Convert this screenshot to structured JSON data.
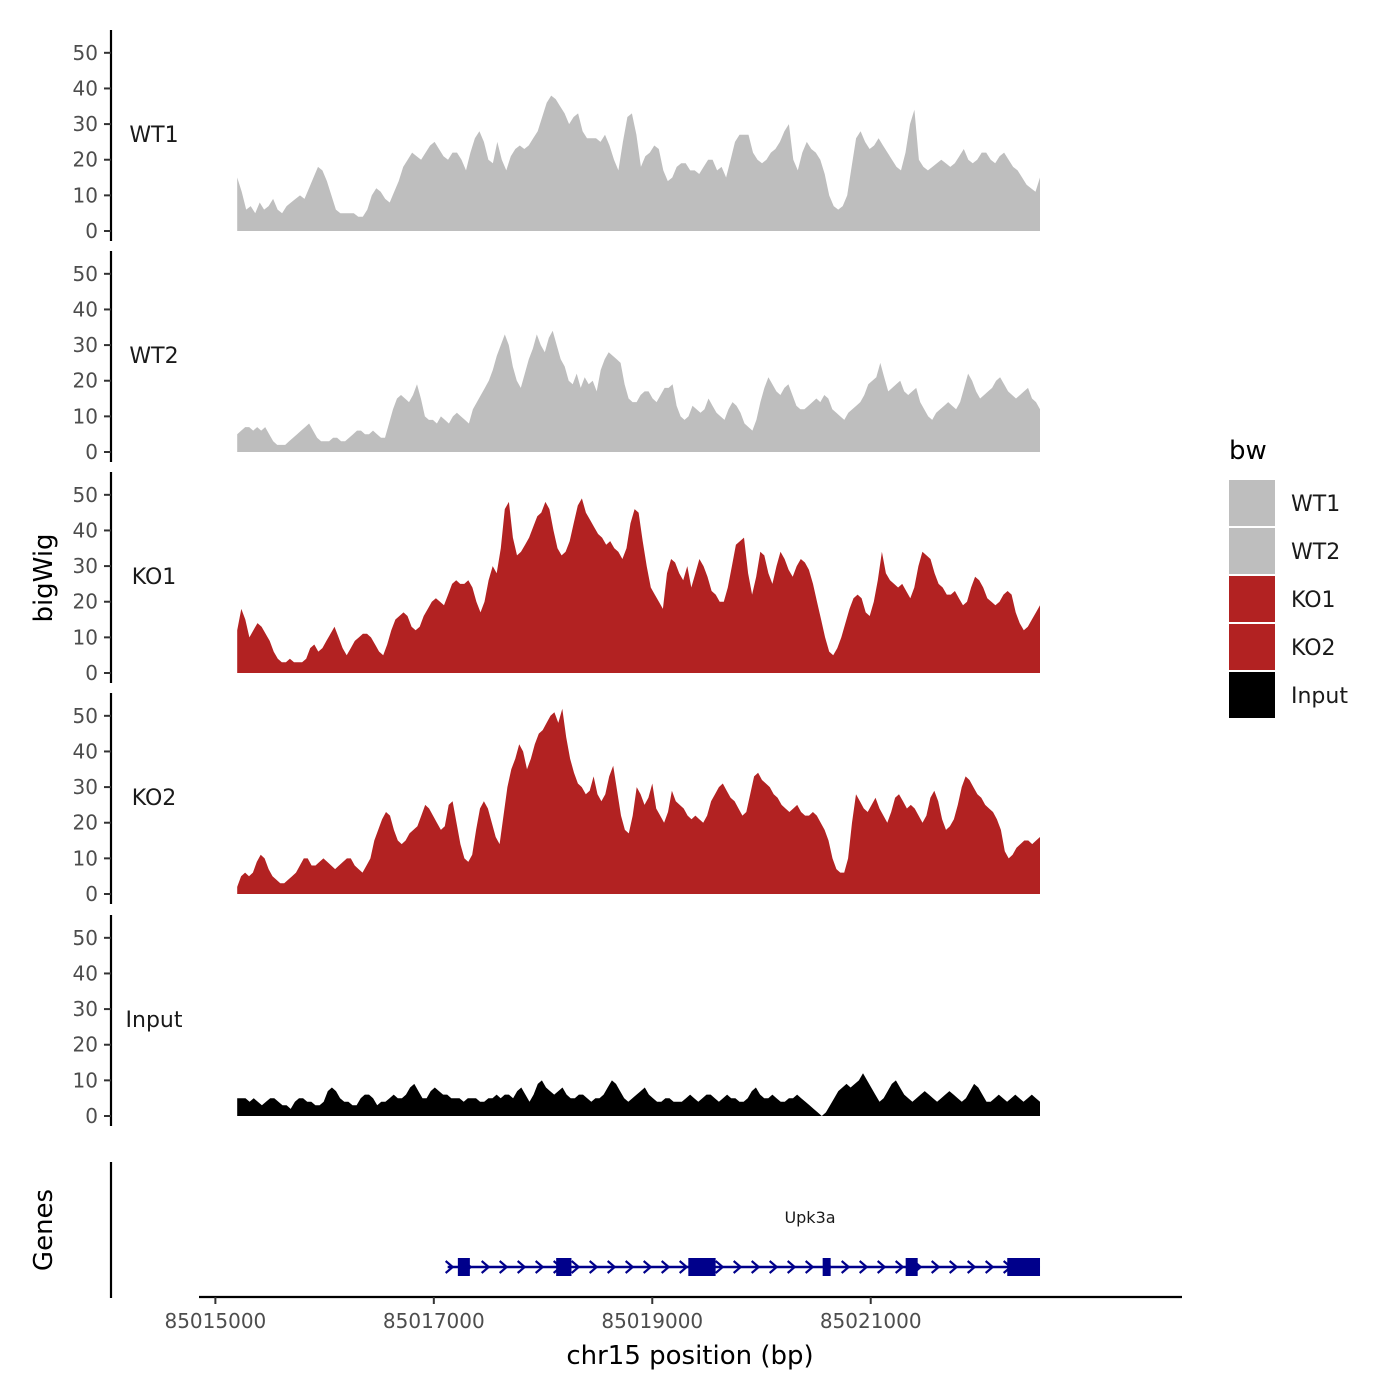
{
  "chart_data": {
    "type": "area",
    "title": "",
    "ylabel": "bigWig",
    "xlabel": "chr15 position (bp)",
    "gene_track_label": "Genes",
    "ylim": [
      0,
      55
    ],
    "yticks": [
      "0",
      "10",
      "20",
      "30",
      "40",
      "50"
    ],
    "xlim": [
      85014850,
      85023850
    ],
    "xticks": [
      {
        "value": 85015000,
        "label": "85015000"
      },
      {
        "value": 85017000,
        "label": "85017000"
      },
      {
        "value": 85019000,
        "label": "85019000"
      },
      {
        "value": 85021000,
        "label": "85021000"
      }
    ],
    "data_range": [
      85015200,
      85022550
    ],
    "legend": {
      "title": "bw",
      "position": "right",
      "entries": [
        {
          "label": "WT1",
          "color": "#BEBEBE"
        },
        {
          "label": "WT2",
          "color": "#BEBEBE"
        },
        {
          "label": "KO1",
          "color": "#B22222"
        },
        {
          "label": "KO2",
          "color": "#B22222"
        },
        {
          "label": "Input",
          "color": "#000000"
        }
      ]
    },
    "series": [
      {
        "name": "WT1",
        "color": "#BEBEBE",
        "values": [
          15,
          11,
          6,
          7,
          5,
          8,
          6,
          7,
          9,
          6,
          5,
          7,
          8,
          9,
          10,
          9,
          12,
          15,
          18,
          17,
          14,
          10,
          6,
          5,
          5,
          5,
          5,
          4,
          4,
          6,
          10,
          12,
          11,
          9,
          8,
          11,
          14,
          18,
          20,
          22,
          21,
          20,
          22,
          24,
          25,
          23,
          21,
          20,
          22,
          22,
          20,
          17,
          22,
          26,
          28,
          25,
          20,
          19,
          25,
          20,
          17,
          21,
          23,
          24,
          23,
          24,
          26,
          28,
          32,
          36,
          38,
          37,
          35,
          33,
          30,
          32,
          33,
          28,
          26,
          26,
          26,
          25,
          27,
          24,
          20,
          17,
          25,
          32,
          33,
          27,
          18,
          21,
          22,
          24,
          23,
          17,
          14,
          15,
          18,
          19,
          19,
          17,
          17,
          16,
          18,
          20,
          20,
          17,
          18,
          15,
          20,
          25,
          27,
          27,
          27,
          22,
          20,
          19,
          20,
          22,
          23,
          25,
          28,
          30,
          20,
          17,
          22,
          25,
          23,
          22,
          20,
          16,
          10,
          7,
          6,
          7,
          10,
          18,
          26,
          28,
          25,
          23,
          24,
          26,
          24,
          22,
          20,
          18,
          17,
          22,
          30,
          34,
          20,
          18,
          17,
          18,
          19,
          20,
          19,
          18,
          19,
          21,
          23,
          20,
          19,
          20,
          22,
          22,
          20,
          19,
          21,
          22,
          20,
          18,
          17,
          15,
          13,
          12,
          11,
          15
        ]
      },
      {
        "name": "WT2",
        "color": "#BEBEBE",
        "values": [
          5,
          6,
          7,
          7,
          6,
          7,
          6,
          7,
          5,
          3,
          2,
          2,
          2,
          3,
          4,
          5,
          6,
          7,
          8,
          6,
          4,
          3,
          3,
          3,
          4,
          4,
          3,
          3,
          4,
          5,
          6,
          6,
          5,
          5,
          6,
          5,
          4,
          4,
          8,
          12,
          15,
          16,
          15,
          14,
          16,
          19,
          15,
          10,
          9,
          9,
          8,
          10,
          9,
          8,
          10,
          11,
          10,
          9,
          8,
          12,
          14,
          16,
          18,
          20,
          23,
          27,
          30,
          33,
          30,
          24,
          20,
          18,
          22,
          26,
          29,
          33,
          30,
          28,
          32,
          34,
          30,
          26,
          24,
          20,
          19,
          22,
          18,
          21,
          19,
          20,
          17,
          23,
          26,
          28,
          27,
          26,
          25,
          19,
          15,
          14,
          14,
          16,
          17,
          17,
          15,
          14,
          16,
          18,
          18,
          19,
          13,
          10,
          9,
          10,
          13,
          12,
          11,
          12,
          15,
          13,
          11,
          10,
          9,
          12,
          14,
          13,
          11,
          8,
          7,
          6,
          9,
          14,
          18,
          21,
          19,
          17,
          16,
          18,
          19,
          16,
          13,
          12,
          12,
          13,
          14,
          15,
          14,
          16,
          15,
          12,
          11,
          10,
          9,
          11,
          12,
          13,
          14,
          16,
          19,
          20,
          21,
          25,
          21,
          17,
          18,
          19,
          20,
          17,
          16,
          17,
          18,
          14,
          12,
          10,
          9,
          11,
          12,
          13,
          14,
          13,
          12,
          14,
          18,
          22,
          20,
          17,
          15,
          16,
          17,
          18,
          20,
          21,
          19,
          17,
          16,
          15,
          16,
          17,
          18,
          15,
          14,
          12
        ]
      },
      {
        "name": "KO1",
        "color": "#B22222",
        "values": [
          12,
          18,
          15,
          10,
          12,
          14,
          13,
          11,
          9,
          6,
          4,
          3,
          3,
          4,
          3,
          3,
          3,
          4,
          7,
          8,
          6,
          7,
          9,
          11,
          13,
          10,
          7,
          5,
          7,
          9,
          10,
          11,
          11,
          10,
          8,
          6,
          5,
          8,
          12,
          15,
          16,
          17,
          16,
          13,
          12,
          13,
          16,
          18,
          20,
          21,
          20,
          19,
          22,
          25,
          26,
          25,
          25,
          26,
          24,
          20,
          17,
          20,
          26,
          30,
          28,
          35,
          46,
          48,
          38,
          33,
          34,
          36,
          38,
          41,
          44,
          45,
          48,
          46,
          40,
          35,
          33,
          34,
          37,
          42,
          47,
          49,
          45,
          43,
          41,
          39,
          38,
          36,
          37,
          35,
          34,
          32,
          35,
          42,
          46,
          45,
          37,
          30,
          24,
          22,
          20,
          18,
          28,
          32,
          31,
          28,
          26,
          30,
          24,
          28,
          32,
          30,
          27,
          23,
          22,
          20,
          20,
          24,
          30,
          36,
          37,
          38,
          28,
          22,
          27,
          34,
          33,
          28,
          25,
          30,
          34,
          32,
          29,
          27,
          30,
          32,
          31,
          29,
          25,
          20,
          15,
          10,
          6,
          5,
          7,
          10,
          14,
          18,
          21,
          22,
          21,
          17,
          16,
          20,
          26,
          34,
          28,
          26,
          25,
          24,
          25,
          23,
          21,
          24,
          30,
          34,
          33,
          32,
          28,
          25,
          24,
          22,
          22,
          23,
          21,
          19,
          20,
          24,
          27,
          26,
          24,
          21,
          20,
          19,
          20,
          22,
          23,
          22,
          17,
          14,
          12,
          13,
          15,
          17,
          19
        ]
      },
      {
        "name": "KO2",
        "color": "#B22222",
        "values": [
          2,
          5,
          6,
          5,
          6,
          9,
          11,
          10,
          7,
          5,
          4,
          3,
          3,
          4,
          5,
          6,
          8,
          10,
          10,
          8,
          8,
          9,
          10,
          9,
          8,
          7,
          8,
          9,
          10,
          10,
          8,
          7,
          6,
          8,
          10,
          15,
          18,
          21,
          23,
          22,
          18,
          15,
          14,
          15,
          17,
          18,
          19,
          22,
          25,
          24,
          22,
          20,
          18,
          19,
          25,
          26,
          20,
          14,
          10,
          9,
          11,
          18,
          24,
          26,
          24,
          20,
          16,
          14,
          22,
          30,
          35,
          38,
          42,
          40,
          35,
          38,
          42,
          45,
          46,
          48,
          50,
          51,
          48,
          52,
          44,
          38,
          34,
          31,
          30,
          28,
          29,
          33,
          28,
          26,
          28,
          33,
          36,
          29,
          22,
          18,
          17,
          22,
          30,
          28,
          25,
          27,
          31,
          24,
          22,
          20,
          23,
          29,
          26,
          25,
          24,
          22,
          21,
          22,
          21,
          20,
          22,
          26,
          28,
          30,
          31,
          29,
          27,
          26,
          24,
          22,
          23,
          28,
          33,
          34,
          32,
          31,
          30,
          28,
          27,
          25,
          24,
          23,
          24,
          25,
          23,
          22,
          22,
          23,
          22,
          20,
          18,
          15,
          10,
          7,
          6,
          6,
          10,
          20,
          28,
          26,
          24,
          23,
          25,
          27,
          24,
          22,
          20,
          23,
          27,
          28,
          26,
          24,
          25,
          24,
          22,
          20,
          22,
          27,
          29,
          26,
          21,
          18,
          19,
          21,
          25,
          30,
          33,
          32,
          30,
          28,
          27,
          25,
          24,
          23,
          21,
          18,
          12,
          10,
          11,
          13,
          14,
          15,
          15,
          14,
          15,
          16
        ]
      },
      {
        "name": "Input",
        "color": "#000000",
        "values": [
          5,
          5,
          5,
          4,
          5,
          4,
          3,
          4,
          5,
          5,
          4,
          3,
          3,
          2,
          4,
          5,
          5,
          4,
          4,
          3,
          3,
          4,
          7,
          8,
          7,
          5,
          4,
          4,
          3,
          3,
          5,
          6,
          6,
          5,
          3,
          4,
          4,
          5,
          6,
          5,
          5,
          6,
          8,
          9,
          7,
          5,
          5,
          7,
          8,
          7,
          6,
          6,
          5,
          5,
          5,
          4,
          5,
          5,
          5,
          4,
          4,
          5,
          5,
          6,
          5,
          6,
          6,
          5,
          7,
          8,
          6,
          4,
          6,
          9,
          10,
          8,
          7,
          6,
          7,
          8,
          6,
          5,
          5,
          6,
          6,
          5,
          4,
          5,
          5,
          6,
          8,
          10,
          9,
          7,
          5,
          4,
          5,
          6,
          7,
          8,
          6,
          5,
          4,
          4,
          5,
          5,
          4,
          4,
          4,
          5,
          6,
          5,
          4,
          5,
          6,
          6,
          5,
          4,
          5,
          6,
          5,
          5,
          4,
          4,
          5,
          7,
          8,
          6,
          5,
          5,
          6,
          5,
          4,
          4,
          5,
          5,
          6,
          5,
          4,
          3,
          2,
          1,
          0,
          1,
          3,
          5,
          7,
          8,
          9,
          8,
          9,
          10,
          12,
          10,
          8,
          6,
          4,
          5,
          7,
          9,
          10,
          8,
          6,
          5,
          4,
          5,
          6,
          7,
          6,
          5,
          4,
          5,
          6,
          7,
          6,
          5,
          4,
          5,
          7,
          9,
          8,
          6,
          4,
          4,
          5,
          6,
          5,
          4,
          5,
          6,
          5,
          4,
          5,
          6,
          5,
          4
        ]
      }
    ],
    "gene": {
      "name": "Upk3a",
      "start": 85017200,
      "end": 85022550,
      "strand": "+",
      "color": "#00008B",
      "exons": [
        [
          85017220,
          85017330
        ],
        [
          85018120,
          85018260
        ],
        [
          85019330,
          85019580
        ],
        [
          85020560,
          85020630
        ],
        [
          85021320,
          85021430
        ],
        [
          85022250,
          85022550
        ]
      ]
    }
  }
}
